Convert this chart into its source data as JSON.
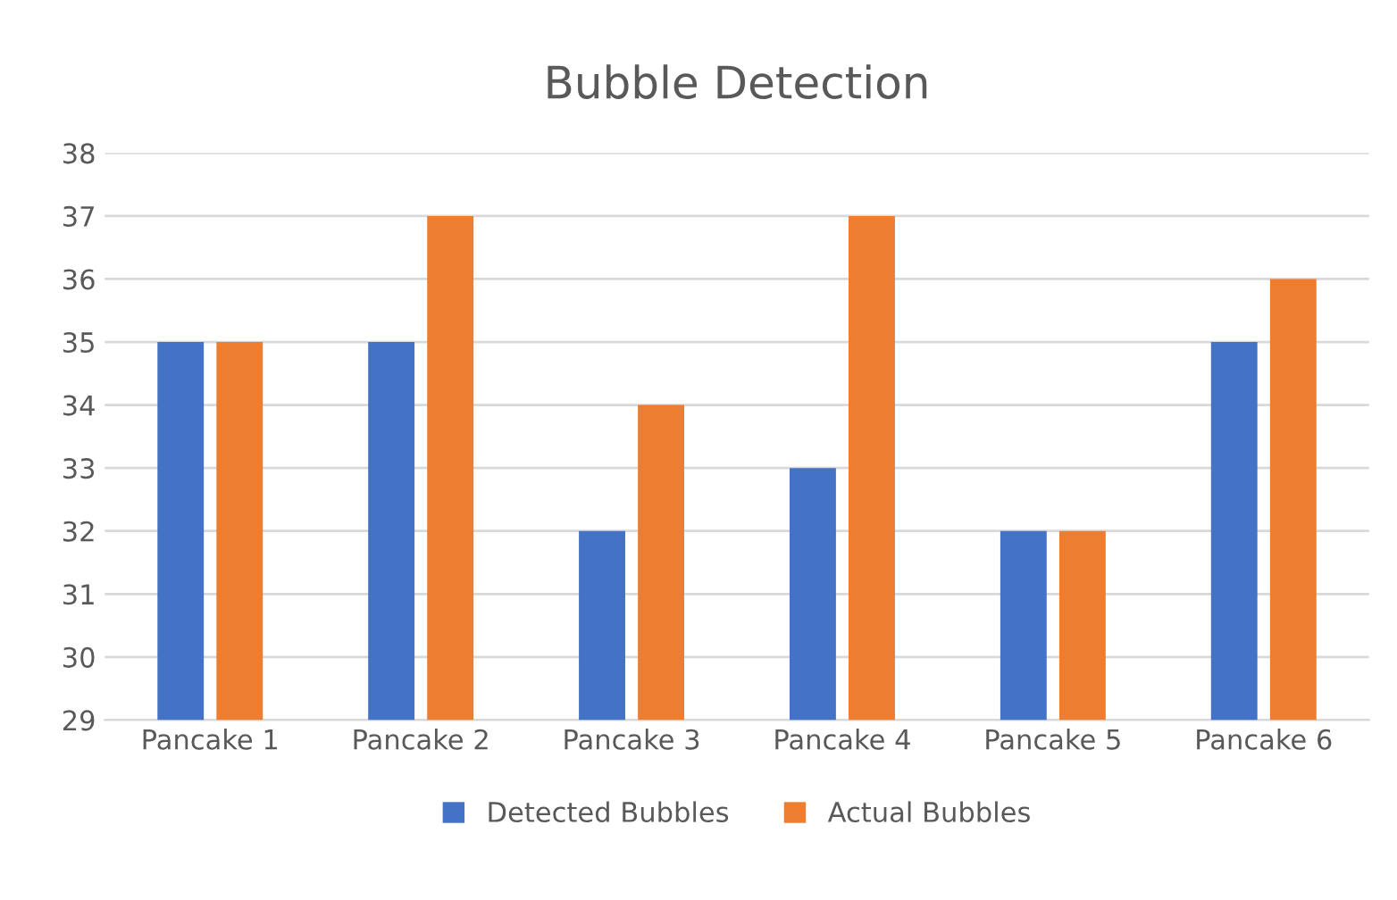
{
  "chart_data": {
    "type": "bar",
    "title": "Bubble Detection",
    "categories": [
      "Pancake 1",
      "Pancake 2",
      "Pancake 3",
      "Pancake 4",
      "Pancake 5",
      "Pancake 6"
    ],
    "series": [
      {
        "name": "Detected Bubbles",
        "color": "#4472c4",
        "values": [
          35,
          35,
          32,
          33,
          32,
          35
        ]
      },
      {
        "name": "Actual Bubbles",
        "color": "#ed7d31",
        "values": [
          35,
          37,
          34,
          37,
          32,
          36
        ]
      }
    ],
    "ylim": [
      29,
      38
    ],
    "yticks": [
      29,
      30,
      31,
      32,
      33,
      34,
      35,
      36,
      37,
      38
    ],
    "grid": "y",
    "legend": "bottom"
  }
}
